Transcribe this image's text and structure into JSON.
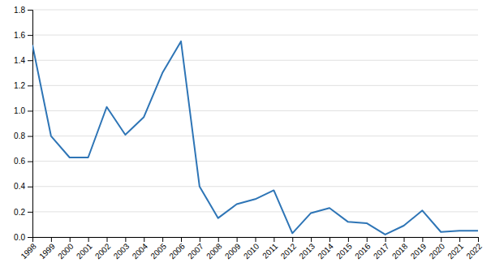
{
  "chart_data": {
    "type": "line",
    "x": [
      1998,
      1999,
      2000,
      2001,
      2002,
      2003,
      2004,
      2005,
      2006,
      2007,
      2008,
      2009,
      2010,
      2011,
      2012,
      2013,
      2014,
      2015,
      2016,
      2017,
      2018,
      2019,
      2020,
      2021,
      2022
    ],
    "values": [
      1.52,
      0.8,
      0.63,
      0.63,
      1.03,
      0.81,
      0.95,
      1.3,
      1.55,
      0.4,
      0.15,
      0.26,
      0.3,
      0.37,
      0.03,
      0.19,
      0.23,
      0.12,
      0.11,
      0.02,
      0.09,
      0.21,
      0.04,
      0.05,
      0.05
    ],
    "color": "#2e75b6",
    "xlim": [
      1998,
      2022
    ],
    "xticks": [
      1998,
      1999,
      2000,
      2001,
      2002,
      2003,
      2004,
      2005,
      2006,
      2007,
      2008,
      2009,
      2010,
      2011,
      2012,
      2013,
      2014,
      2015,
      2016,
      2017,
      2018,
      2019,
      2020,
      2021,
      2022
    ],
    "ylim": [
      0,
      1.8
    ],
    "yticks": [
      {
        "value": 0,
        "label": "0.0"
      },
      0.2,
      0.4,
      0.6,
      0.8,
      {
        "value": 1,
        "label": "1.0"
      },
      1.2,
      1.4,
      1.6,
      1.8
    ],
    "grid": true
  }
}
